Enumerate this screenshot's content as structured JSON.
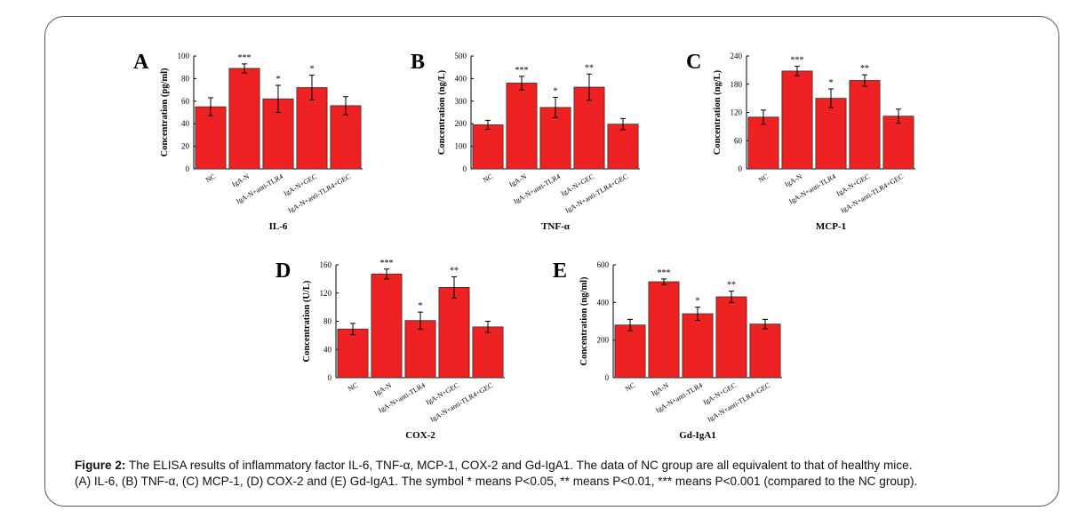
{
  "chart_data": [
    {
      "type": "bar",
      "panel_letter": "A",
      "title": "IL-6",
      "ylabel": "Concentration (pg/ml)",
      "xlabel": "",
      "ylim": [
        0,
        100
      ],
      "yticks": [
        "0",
        "20",
        "40",
        "60",
        "80",
        "100"
      ],
      "categories": [
        "NC",
        "IgA-N",
        "IgA-N+anti-TLR4",
        "IgA-N+GEC",
        "IgA-N+anti-TLR4+GEC"
      ],
      "values": [
        55,
        89,
        62,
        72,
        56
      ],
      "errors": [
        8,
        4,
        12,
        11,
        8
      ],
      "annotations": [
        "",
        "***",
        "*",
        "*",
        ""
      ],
      "color": "#ee2222"
    },
    {
      "type": "bar",
      "panel_letter": "B",
      "title": "TNF-α",
      "ylabel": "Concentration (ng/L)",
      "xlabel": "",
      "ylim": [
        0,
        500
      ],
      "yticks": [
        "0",
        "100",
        "200",
        "300",
        "400",
        "500"
      ],
      "categories": [
        "NC",
        "IgA-N",
        "IgA-N+anti-TLR4",
        "IgA-N+GEC",
        "IgA-N+anti-TLR4+GEC"
      ],
      "values": [
        195,
        380,
        272,
        362,
        198
      ],
      "errors": [
        20,
        30,
        45,
        58,
        25
      ],
      "annotations": [
        "",
        "***",
        "*",
        "**",
        ""
      ],
      "color": "#ee2222"
    },
    {
      "type": "bar",
      "panel_letter": "C",
      "title": "MCP-1",
      "ylabel": "Concentration (ng/L)",
      "xlabel": "",
      "ylim": [
        0,
        240
      ],
      "yticks": [
        "0",
        "60",
        "120",
        "180",
        "240"
      ],
      "categories": [
        "NC",
        "IgA-N",
        "IgA-N+anti-TLR4",
        "IgA-N+GEC",
        "IgA-N+anti-TLR4+GEC"
      ],
      "values": [
        110,
        208,
        150,
        188,
        112
      ],
      "errors": [
        15,
        10,
        20,
        12,
        15
      ],
      "annotations": [
        "",
        "***",
        "*",
        "**",
        ""
      ],
      "color": "#ee2222"
    },
    {
      "type": "bar",
      "panel_letter": "D",
      "title": "COX-2",
      "ylabel": "Concentration (U/L)",
      "xlabel": "",
      "ylim": [
        0,
        160
      ],
      "yticks": [
        "0",
        "40",
        "80",
        "120",
        "160"
      ],
      "categories": [
        "NC",
        "IgA-N",
        "IgA-N+anti-TLR4",
        "IgA-N+GEC",
        "IgA-N+anti-TLR4+GEC"
      ],
      "values": [
        69,
        147,
        81,
        128,
        72
      ],
      "errors": [
        8,
        7,
        12,
        15,
        8
      ],
      "annotations": [
        "",
        "***",
        "*",
        "**",
        ""
      ],
      "color": "#ee2222"
    },
    {
      "type": "bar",
      "panel_letter": "E",
      "title": "Gd-IgA1",
      "ylabel": "Concentration (ng/ml)",
      "xlabel": "",
      "ylim": [
        0,
        600
      ],
      "yticks": [
        "0",
        "200",
        "400",
        "600"
      ],
      "categories": [
        "NC",
        "IgA-N",
        "IgA-N+anti-TLR4",
        "IgA-N+GEC",
        "IgA-N+anti-TLR4+GEC"
      ],
      "values": [
        280,
        510,
        340,
        430,
        285
      ],
      "errors": [
        30,
        15,
        35,
        30,
        25
      ],
      "annotations": [
        "",
        "***",
        "*",
        "**",
        ""
      ],
      "color": "#ee2222"
    }
  ],
  "caption": {
    "label": "Figure 2:",
    "line1": " The ELISA results of inflammatory factor IL-6, TNF-α, MCP-1, COX-2 and Gd-IgA1. The data of NC group are all equivalent to that of healthy mice.",
    "line2": "(A) IL-6, (B) TNF-α, (C) MCP-1, (D) COX-2 and (E) Gd-IgA1. The symbol * means P<0.05, ** means P<0.01, *** means P<0.001 (compared to the NC group)."
  }
}
